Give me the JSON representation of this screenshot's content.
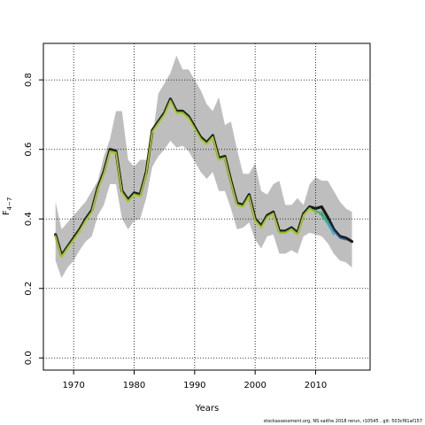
{
  "chart_data": {
    "type": "line",
    "title": "",
    "xlabel": "Years",
    "ylabel": "F",
    "ylabel_sub": "4−7",
    "xlim": [
      1965,
      2019
    ],
    "ylim": [
      -0.035,
      0.905
    ],
    "xticks": [
      1970,
      1980,
      1990,
      2000,
      2010
    ],
    "yticks": [
      0.0,
      0.2,
      0.4,
      0.6,
      0.8
    ],
    "grid": true,
    "band": {
      "x": [
        1967,
        1968,
        1969,
        1970,
        1971,
        1972,
        1973,
        1974,
        1975,
        1976,
        1977,
        1978,
        1979,
        1980,
        1981,
        1982,
        1983,
        1984,
        1985,
        1986,
        1987,
        1988,
        1989,
        1990,
        1991,
        1992,
        1993,
        1994,
        1995,
        1996,
        1997,
        1998,
        1999,
        2000,
        2001,
        2002,
        2003,
        2004,
        2005,
        2006,
        2007,
        2008,
        2009,
        2010,
        2011,
        2012,
        2013,
        2014,
        2015,
        2016
      ],
      "lower": [
        0.28,
        0.23,
        0.26,
        0.28,
        0.31,
        0.335,
        0.35,
        0.41,
        0.44,
        0.5,
        0.5,
        0.4,
        0.37,
        0.395,
        0.4,
        0.46,
        0.55,
        0.58,
        0.6,
        0.625,
        0.605,
        0.61,
        0.595,
        0.565,
        0.535,
        0.515,
        0.535,
        0.48,
        0.48,
        0.43,
        0.37,
        0.375,
        0.39,
        0.34,
        0.315,
        0.35,
        0.355,
        0.3,
        0.3,
        0.31,
        0.3,
        0.35,
        0.36,
        0.355,
        0.35,
        0.33,
        0.3,
        0.28,
        0.275,
        0.26
      ],
      "upper": [
        0.45,
        0.37,
        0.39,
        0.41,
        0.43,
        0.45,
        0.48,
        0.51,
        0.58,
        0.63,
        0.71,
        0.71,
        0.57,
        0.55,
        0.57,
        0.57,
        0.63,
        0.76,
        0.79,
        0.82,
        0.87,
        0.83,
        0.83,
        0.8,
        0.77,
        0.73,
        0.71,
        0.75,
        0.67,
        0.68,
        0.6,
        0.53,
        0.53,
        0.56,
        0.48,
        0.47,
        0.5,
        0.51,
        0.44,
        0.44,
        0.46,
        0.44,
        0.5,
        0.52,
        0.51,
        0.51,
        0.48,
        0.45,
        0.43,
        0.42
      ]
    },
    "series": [
      {
        "color": "#1a1a1a",
        "x": [
          1967,
          1968,
          1969,
          1970,
          1971,
          1972,
          1973,
          1974,
          1975,
          1976,
          1977,
          1978,
          1979,
          1980,
          1981,
          1982,
          1983,
          1984,
          1985,
          1986,
          1987,
          1988,
          1989,
          1990,
          1991,
          1992,
          1993,
          1994,
          1995,
          1996,
          1997,
          1998,
          1999,
          2000,
          2001,
          2002,
          2003,
          2004,
          2005,
          2006,
          2007,
          2008,
          2009,
          2010,
          2011,
          2012,
          2013,
          2014,
          2015,
          2016
        ],
        "y": [
          0.355,
          0.295,
          0.32,
          0.345,
          0.37,
          0.4,
          0.425,
          0.49,
          0.535,
          0.6,
          0.595,
          0.48,
          0.455,
          0.475,
          0.47,
          0.535,
          0.655,
          0.68,
          0.705,
          0.745,
          0.71,
          0.71,
          0.695,
          0.665,
          0.635,
          0.62,
          0.64,
          0.575,
          0.58,
          0.51,
          0.445,
          0.44,
          0.47,
          0.4,
          0.38,
          0.41,
          0.42,
          0.365,
          0.365,
          0.375,
          0.36,
          0.415,
          0.435,
          0.43,
          0.435,
          0.405,
          0.37,
          0.35,
          0.345,
          0.335
        ]
      },
      {
        "color": "#2a6fb0",
        "x": [
          2011,
          2012,
          2013,
          2014,
          2015
        ],
        "y": [
          0.415,
          0.395,
          0.365,
          0.345,
          0.34
        ]
      },
      {
        "color": "#2bb3a8",
        "x": [
          2010,
          2011,
          2012,
          2013
        ],
        "y": [
          0.425,
          0.41,
          0.385,
          0.355
        ]
      },
      {
        "color": "#56b04a",
        "x": [
          1967,
          1968,
          1969,
          1970,
          1971,
          1972,
          1973,
          1974,
          1975,
          1976,
          1977,
          1978,
          1979,
          1980,
          1981,
          1982,
          1983,
          1984,
          1985,
          1986,
          1987,
          1988,
          1989,
          1990,
          1991,
          1992,
          1993,
          1994,
          1995,
          1996,
          1997,
          1998,
          1999,
          2000,
          2001,
          2002,
          2003,
          2004,
          2005,
          2006,
          2007,
          2008,
          2009,
          2010,
          2011,
          2012
        ],
        "y": [
          0.352,
          0.292,
          0.318,
          0.342,
          0.367,
          0.397,
          0.422,
          0.487,
          0.532,
          0.596,
          0.592,
          0.477,
          0.452,
          0.472,
          0.467,
          0.532,
          0.652,
          0.677,
          0.702,
          0.742,
          0.707,
          0.707,
          0.692,
          0.662,
          0.632,
          0.617,
          0.637,
          0.572,
          0.577,
          0.507,
          0.442,
          0.437,
          0.467,
          0.397,
          0.377,
          0.407,
          0.417,
          0.362,
          0.362,
          0.372,
          0.357,
          0.412,
          0.432,
          0.42,
          0.42,
          0.39
        ]
      },
      {
        "color": "#b5c41e",
        "x": [
          1967,
          1968,
          1969,
          1970,
          1971,
          1972,
          1973,
          1974,
          1975,
          1976,
          1977,
          1978,
          1979,
          1980,
          1981,
          1982,
          1983,
          1984,
          1985,
          1986,
          1987,
          1988,
          1989,
          1990,
          1991,
          1992,
          1993,
          1994,
          1995,
          1996,
          1997,
          1998,
          1999,
          2000,
          2001,
          2002,
          2003,
          2004,
          2005,
          2006,
          2007,
          2008,
          2009,
          2010
        ],
        "y": [
          0.349,
          0.289,
          0.315,
          0.339,
          0.364,
          0.394,
          0.419,
          0.484,
          0.529,
          0.592,
          0.589,
          0.474,
          0.449,
          0.469,
          0.464,
          0.529,
          0.649,
          0.674,
          0.699,
          0.739,
          0.704,
          0.704,
          0.689,
          0.659,
          0.629,
          0.614,
          0.634,
          0.569,
          0.574,
          0.504,
          0.439,
          0.434,
          0.464,
          0.394,
          0.374,
          0.404,
          0.414,
          0.359,
          0.359,
          0.369,
          0.354,
          0.409,
          0.429,
          0.418
        ]
      }
    ]
  },
  "footer_text": "stockassessment.org, NS saithe 2018 rerun, r10545 , git: 503cf91af157"
}
